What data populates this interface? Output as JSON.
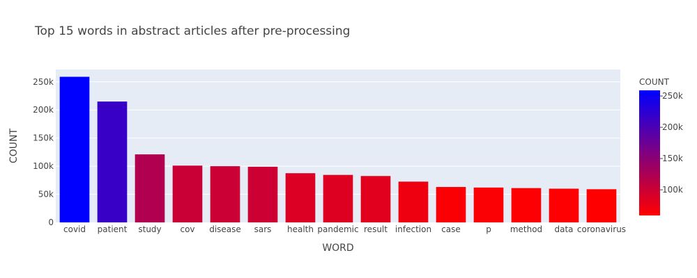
{
  "chart_data": {
    "type": "bar",
    "title": "Top 15 words in abstract articles after pre-processing",
    "xlabel": "WORD",
    "ylabel": "COUNT",
    "categories": [
      "covid",
      "patient",
      "study",
      "cov",
      "disease",
      "sars",
      "health",
      "pandemic",
      "result",
      "infection",
      "case",
      "p",
      "method",
      "data",
      "coronavirus"
    ],
    "values": [
      259000,
      215000,
      121000,
      101000,
      100000,
      99000,
      87500,
      84500,
      82500,
      72500,
      63000,
      62000,
      61000,
      60000,
      59000
    ],
    "ylim": [
      0,
      272000
    ],
    "yticks": [
      0,
      50000,
      100000,
      150000,
      200000,
      250000
    ],
    "ytick_labels": [
      "0",
      "50k",
      "100k",
      "150k",
      "200k",
      "250k"
    ],
    "grid": true,
    "legend": "none",
    "colorbar": {
      "title": "COUNT",
      "range": [
        59000,
        259000
      ],
      "ticks": [
        100000,
        150000,
        200000,
        250000
      ],
      "tick_labels": [
        "100k",
        "150k",
        "200k",
        "250k"
      ],
      "color_low": "#ff0000",
      "color_high": "#0000ff"
    },
    "colors": {
      "plot_bg": "#e5ecf6",
      "grid": "#ffffff",
      "text": "#444444"
    }
  }
}
